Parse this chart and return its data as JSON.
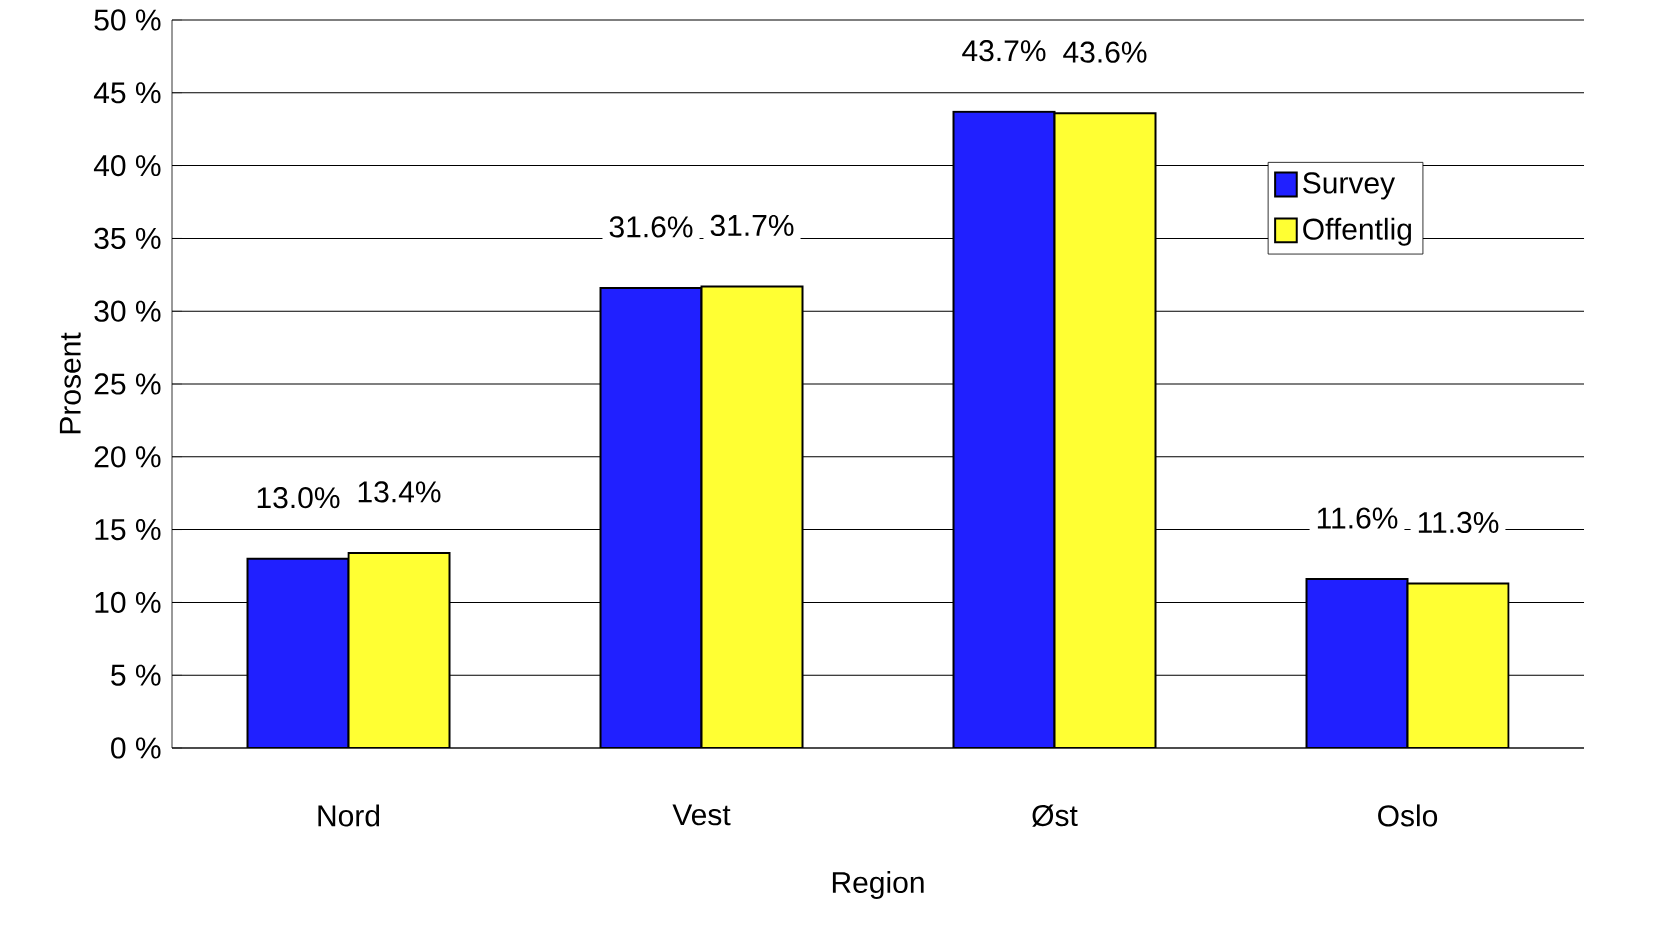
{
  "chart_data": {
    "type": "bar",
    "xlabel": "Region",
    "ylabel": "Prosent",
    "categories": [
      "Nord",
      "Vest",
      "Øst",
      "Oslo"
    ],
    "series": [
      {
        "name": "Survey",
        "color": "#2020ff",
        "values": [
          13.0,
          31.6,
          43.7,
          11.6
        ],
        "value_labels": [
          "13.0%",
          "31.6%",
          "43.7%",
          "11.6%"
        ]
      },
      {
        "name": "Offentlig",
        "color": "#ffff33",
        "values": [
          13.4,
          31.7,
          43.6,
          11.3
        ],
        "value_labels": [
          "13.4%",
          "31.7%",
          "43.6%",
          "11.3%"
        ]
      }
    ],
    "ylim": [
      0,
      50
    ],
    "yticks": [
      {
        "value": 0,
        "label": "0 %"
      },
      {
        "value": 5,
        "label": "5 %"
      },
      {
        "value": 10,
        "label": "10 %"
      },
      {
        "value": 15,
        "label": "15 %"
      },
      {
        "value": 20,
        "label": "20 %"
      },
      {
        "value": 25,
        "label": "25 %"
      },
      {
        "value": 30,
        "label": "30 %"
      },
      {
        "value": 35,
        "label": "35 %"
      },
      {
        "value": 40,
        "label": "40 %"
      },
      {
        "value": 45,
        "label": "45 %"
      },
      {
        "value": 50,
        "label": "50 %"
      }
    ],
    "grid": "y",
    "legend": "top right"
  }
}
